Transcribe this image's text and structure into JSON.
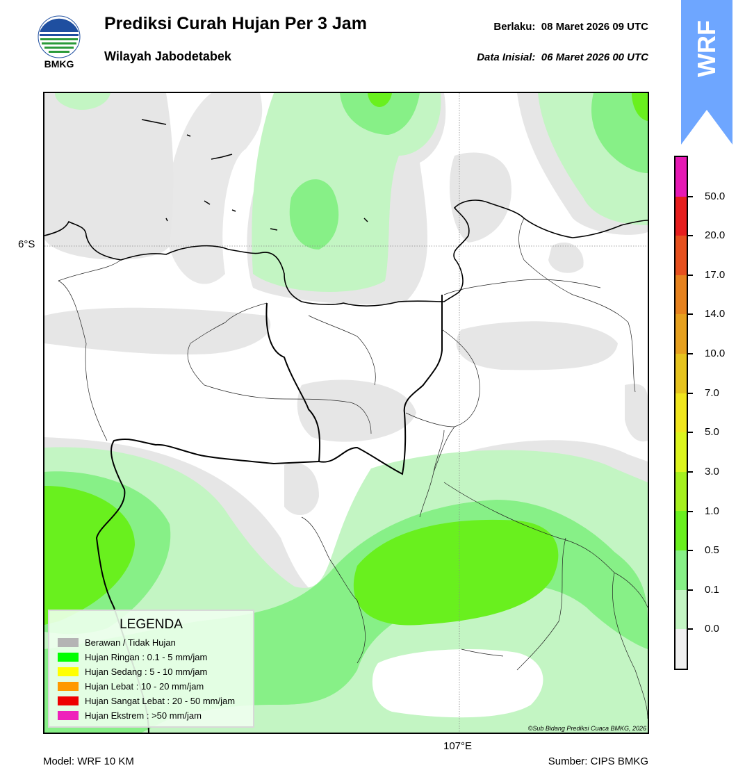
{
  "header": {
    "title": "Prediksi Curah Hujan Per 3 Jam",
    "subtitle": "Wilayah Jabodetabek",
    "valid_label": "Berlaku:",
    "valid_value": "08 Maret 2026 09 UTC",
    "init_label": "Data Inisial:",
    "init_value": "06 Maret 2026 00 UTC"
  },
  "logo": {
    "text": "BMKG",
    "icon": "bmkg-logo"
  },
  "badge": {
    "text": "WRF",
    "color": "#6ea6ff"
  },
  "map": {
    "lat_label": "6°S",
    "lon_label": "107°E",
    "copyright": "©Sub Bidang Prediksi Cuaca BMKG, 2026"
  },
  "legend": {
    "title": "LEGENDA",
    "items": [
      {
        "label": "Berawan / Tidak Hujan",
        "color": "#b4b4b4"
      },
      {
        "label": "Hujan Ringan : 0.1 - 5 mm/jam",
        "color": "#00ff00"
      },
      {
        "label": "Hujan Sedang : 5 - 10 mm/jam",
        "color": "#ffff00"
      },
      {
        "label": "Hujan Lebat : 10 - 20 mm/jam",
        "color": "#ff9900"
      },
      {
        "label": "Hujan Sangat Lebat : 20 - 50 mm/jam",
        "color": "#ee0000"
      },
      {
        "label": "Hujan Ekstrem : >50 mm/jam",
        "color": "#ee22bb"
      }
    ]
  },
  "colorbar": {
    "labels": [
      "50.0",
      "20.0",
      "17.0",
      "14.0",
      "10.0",
      "7.0",
      "5.0",
      "3.0",
      "1.0",
      "0.5",
      "0.1",
      "0.0"
    ],
    "colors_top_to_bottom": [
      "#e619b4",
      "#e61e1e",
      "#e6501e",
      "#e6821e",
      "#e6a01e",
      "#e6c31e",
      "#f0e61e",
      "#dcf51e",
      "#a5f01e",
      "#69f01e",
      "#87f087",
      "#c3f5c3",
      "#f0f0f0"
    ]
  },
  "footer": {
    "model": "Model: WRF 10 KM",
    "source": "Sumber: CIPS BMKG"
  }
}
